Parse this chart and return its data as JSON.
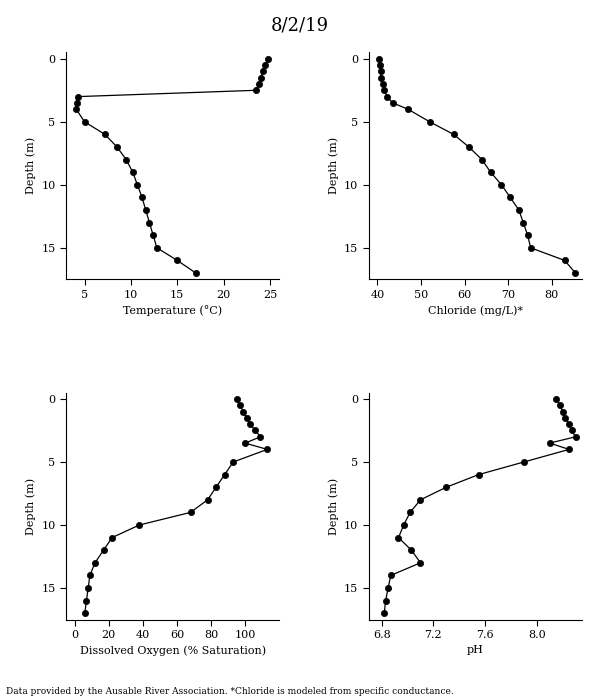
{
  "title": "8/2/19",
  "footnote": "Data provided by the Ausable River Association. *Chloride is modeled from specific conductance.",
  "temp": {
    "depth": [
      0,
      0.5,
      1,
      1.5,
      2,
      2.5,
      3,
      3.5,
      4,
      5,
      6,
      7,
      8,
      9,
      10,
      11,
      12,
      13,
      14,
      15,
      16,
      17
    ],
    "values": [
      24.8,
      24.5,
      24.2,
      24.0,
      23.8,
      23.5,
      4.3,
      4.15,
      4.1,
      5.0,
      7.2,
      8.5,
      9.5,
      10.2,
      10.7,
      11.2,
      11.6,
      12.0,
      12.4,
      12.8,
      15.0,
      17.0
    ],
    "xlabel": "Temperature (°C)",
    "ylabel": "Depth (m)",
    "xlim": [
      3,
      26
    ],
    "xticks": [
      5,
      10,
      15,
      20,
      25
    ],
    "ylim": [
      17.5,
      -0.5
    ],
    "yticks": [
      0,
      5,
      10,
      15
    ]
  },
  "chloride": {
    "depth": [
      0,
      0.5,
      1,
      1.5,
      2,
      2.5,
      3,
      3.5,
      4,
      5,
      6,
      7,
      8,
      9,
      10,
      11,
      12,
      13,
      14,
      15,
      16,
      17
    ],
    "values": [
      40.3,
      40.5,
      40.7,
      40.9,
      41.2,
      41.6,
      42.2,
      43.5,
      47.0,
      52.0,
      57.5,
      61.0,
      64.0,
      66.0,
      68.5,
      70.5,
      72.5,
      73.5,
      74.5,
      75.2,
      83.0,
      85.5
    ],
    "xlabel": "Chloride (mg/L)*",
    "ylabel": "Depth (m)",
    "xlim": [
      38,
      87
    ],
    "xticks": [
      40,
      50,
      60,
      70,
      80
    ],
    "ylim": [
      17.5,
      -0.5
    ],
    "yticks": [
      0,
      5,
      10,
      15
    ]
  },
  "do": {
    "depth": [
      0,
      0.5,
      1,
      1.5,
      2,
      2.5,
      3,
      3.5,
      4,
      5,
      6,
      7,
      8,
      9,
      10,
      11,
      12,
      13,
      14,
      15,
      16,
      17
    ],
    "values": [
      95,
      97,
      99,
      101,
      103,
      106,
      109,
      100,
      113,
      93,
      88,
      83,
      78,
      68,
      38,
      22,
      17,
      12,
      9,
      8,
      7,
      6
    ],
    "xlabel": "Dissolved Oxygen (% Saturation)",
    "ylabel": "Depth (m)",
    "xlim": [
      -5,
      120
    ],
    "xticks": [
      0,
      20,
      40,
      60,
      80,
      100
    ],
    "ylim": [
      17.5,
      -0.5
    ],
    "yticks": [
      0,
      5,
      10,
      15
    ]
  },
  "ph": {
    "depth": [
      0,
      0.5,
      1,
      1.5,
      2,
      2.5,
      3,
      3.5,
      4,
      5,
      6,
      7,
      8,
      9,
      10,
      11,
      12,
      13,
      14,
      15,
      16,
      17
    ],
    "values": [
      8.15,
      8.18,
      8.2,
      8.22,
      8.25,
      8.27,
      8.3,
      8.1,
      8.25,
      7.9,
      7.55,
      7.3,
      7.1,
      7.02,
      6.97,
      6.93,
      7.03,
      7.1,
      6.87,
      6.85,
      6.83,
      6.82
    ],
    "xlabel": "pH",
    "ylabel": "Depth (m)",
    "xlim": [
      6.7,
      8.35
    ],
    "xticks": [
      6.8,
      7.2,
      7.6,
      8.0
    ],
    "ylim": [
      17.5,
      -0.5
    ],
    "yticks": [
      0,
      5,
      10,
      15
    ]
  }
}
